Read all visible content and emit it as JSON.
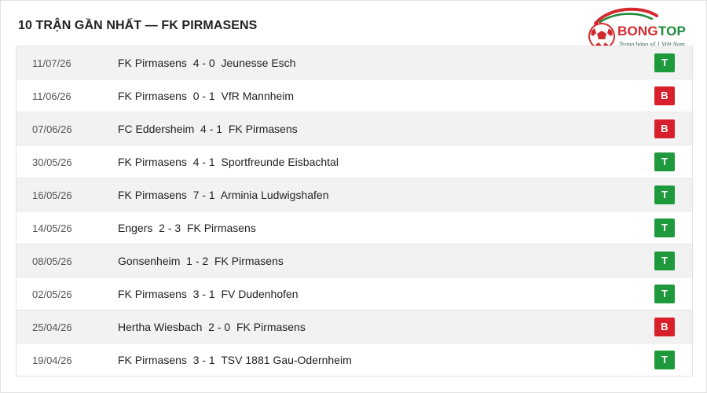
{
  "header": {
    "title": "10 TRẬN GẦN NHẤT — FK PIRMASENS"
  },
  "logo": {
    "brand_part1": "BONG",
    "brand_part2": "TOP",
    "tagline": "Trang bóng số 1 Việt Nam",
    "colors": {
      "red": "#d22a2e",
      "green": "#1f8a3a"
    }
  },
  "colors": {
    "win": "#1e9a3c",
    "loss": "#d7202b"
  },
  "matches": [
    {
      "date": "11/07/26",
      "home": "FK Pirmasens",
      "score": "4 - 0",
      "away": "Jeunesse Esch",
      "result": "T"
    },
    {
      "date": "11/06/26",
      "home": "FK Pirmasens",
      "score": "0 - 1",
      "away": "VfR Mannheim",
      "result": "B"
    },
    {
      "date": "07/06/26",
      "home": "FC Eddersheim",
      "score": "4 - 1",
      "away": "FK Pirmasens",
      "result": "B"
    },
    {
      "date": "30/05/26",
      "home": "FK Pirmasens",
      "score": "4 - 1",
      "away": "Sportfreunde Eisbachtal",
      "result": "T"
    },
    {
      "date": "16/05/26",
      "home": "FK Pirmasens",
      "score": "7 - 1",
      "away": "Arminia Ludwigshafen",
      "result": "T"
    },
    {
      "date": "14/05/26",
      "home": "Engers",
      "score": "2 - 3",
      "away": "FK Pirmasens",
      "result": "T"
    },
    {
      "date": "08/05/26",
      "home": "Gonsenheim",
      "score": "1 - 2",
      "away": "FK Pirmasens",
      "result": "T"
    },
    {
      "date": "02/05/26",
      "home": "FK Pirmasens",
      "score": "3 - 1",
      "away": "FV Dudenhofen",
      "result": "T"
    },
    {
      "date": "25/04/26",
      "home": "Hertha Wiesbach",
      "score": "2 - 0",
      "away": "FK Pirmasens",
      "result": "B"
    },
    {
      "date": "19/04/26",
      "home": "FK Pirmasens",
      "score": "3 - 1",
      "away": "TSV 1881 Gau-Odernheim",
      "result": "T"
    }
  ]
}
